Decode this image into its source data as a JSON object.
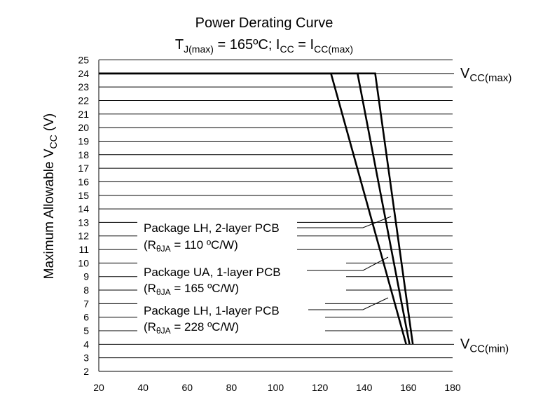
{
  "chart_data": {
    "type": "line",
    "title": "Power Derating Curve",
    "subtitle": {
      "t": "T",
      "t_sub": "J(max)",
      "mid": " = 165ºC; I",
      "icc_sub": "CC",
      "eq": " =  I",
      "icc2_sub": "CC(max)"
    },
    "ylabel": {
      "pre": "Maximum Allowable V",
      "sub": "CC",
      "post": " (V)"
    },
    "xlabel": "",
    "xlim": [
      20,
      180
    ],
    "ylim": [
      2,
      25
    ],
    "x_ticks": [
      20,
      40,
      60,
      80,
      100,
      120,
      140,
      160,
      180
    ],
    "y_ticks": [
      2,
      3,
      4,
      5,
      6,
      7,
      8,
      9,
      10,
      11,
      12,
      13,
      14,
      15,
      16,
      17,
      18,
      19,
      20,
      21,
      22,
      23,
      24,
      25
    ],
    "grid": "horizontal",
    "reference_lines": [
      {
        "y": 24,
        "label": "V",
        "sub": "CC(max)"
      },
      {
        "y": 4,
        "label": "V",
        "sub": "CC(min)"
      }
    ],
    "series": [
      {
        "name": "Package LH, 2-layer PCB",
        "detail": {
          "pre": "(R",
          "sub": "θJA",
          "post": " = 110 ºC/W)"
        },
        "x": [
          20,
          145,
          162
        ],
        "y": [
          24,
          24,
          4
        ]
      },
      {
        "name": "Package UA, 1-layer PCB",
        "detail": {
          "pre": "(R",
          "sub": "θJA",
          "post": " = 165 ºC/W)"
        },
        "x": [
          20,
          137,
          160.5
        ],
        "y": [
          24,
          24,
          4
        ]
      },
      {
        "name": "Package LH, 1-layer PCB",
        "detail": {
          "pre": "(R",
          "sub": "θJA",
          "post": " = 228 ºC/W)"
        },
        "x": [
          20,
          125,
          159
        ],
        "y": [
          24,
          24,
          4
        ]
      }
    ]
  }
}
